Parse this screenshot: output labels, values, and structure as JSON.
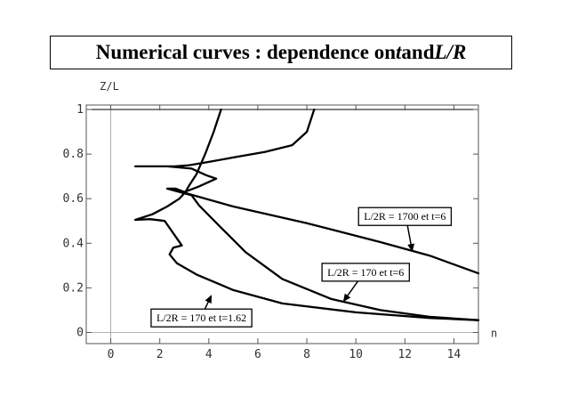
{
  "title": {
    "prefix": "Numerical curves : dependence on ",
    "var1": "t",
    "mid": " and ",
    "var2": "L/R"
  },
  "chart_data": {
    "type": "line",
    "xlabel": "n",
    "ylabel": "Z/L",
    "xlim": [
      -1.0,
      15.0
    ],
    "ylim": [
      -0.05,
      1.02
    ],
    "xticks": [
      0,
      2,
      4,
      6,
      8,
      10,
      12,
      14
    ],
    "yticks": [
      0,
      0.2,
      0.4,
      0.6,
      0.8,
      1
    ],
    "ytick_labels": [
      "0",
      "0.2",
      "0.4",
      "0.6",
      "0.8",
      "1"
    ],
    "reference_line_y": 1,
    "series": [
      {
        "points": [
          [
            4.5,
            1.0
          ],
          [
            4.2,
            0.9
          ],
          [
            3.85,
            0.8
          ],
          [
            3.5,
            0.71
          ],
          [
            3.2,
            0.66
          ],
          [
            3.05,
            0.63
          ],
          [
            2.8,
            0.6
          ],
          [
            2.3,
            0.565
          ],
          [
            1.7,
            0.53
          ],
          [
            1.0,
            0.505
          ],
          [
            1.6,
            0.508
          ],
          [
            2.2,
            0.5
          ],
          [
            2.9,
            0.39
          ],
          [
            2.55,
            0.38
          ],
          [
            2.4,
            0.35
          ],
          [
            2.7,
            0.31
          ],
          [
            3.5,
            0.26
          ],
          [
            5.0,
            0.19
          ],
          [
            7.0,
            0.13
          ],
          [
            10.0,
            0.09
          ],
          [
            13.0,
            0.065
          ],
          [
            15.0,
            0.055
          ]
        ]
      },
      {
        "points": [
          [
            8.3,
            1.0
          ],
          [
            8.0,
            0.9
          ],
          [
            7.4,
            0.84
          ],
          [
            6.3,
            0.81
          ],
          [
            5.0,
            0.785
          ],
          [
            4.0,
            0.765
          ],
          [
            3.2,
            0.75
          ],
          [
            2.6,
            0.745
          ],
          [
            1.0,
            0.745
          ],
          [
            2.3,
            0.745
          ],
          [
            3.3,
            0.735
          ],
          [
            3.9,
            0.705
          ],
          [
            4.3,
            0.69
          ],
          [
            3.6,
            0.655
          ],
          [
            3.25,
            0.64
          ],
          [
            3.0,
            0.63
          ],
          [
            2.65,
            0.645
          ],
          [
            2.3,
            0.645
          ],
          [
            3.3,
            0.615
          ],
          [
            3.6,
            0.57
          ],
          [
            4.5,
            0.47
          ],
          [
            5.5,
            0.36
          ],
          [
            7.0,
            0.24
          ],
          [
            9.0,
            0.15
          ],
          [
            11.0,
            0.1
          ],
          [
            13.0,
            0.07
          ],
          [
            15.0,
            0.055
          ]
        ]
      },
      {
        "points": [
          [
            3.05,
            0.625
          ],
          [
            5.0,
            0.565
          ],
          [
            8.0,
            0.49
          ],
          [
            11.0,
            0.405
          ],
          [
            13.0,
            0.345
          ],
          [
            15.0,
            0.265
          ]
        ]
      }
    ],
    "annotations": [
      {
        "label": "L/2R = 1700  et  t=6",
        "text_at": [
          12.0,
          0.52
        ],
        "arrow_to": [
          12.3,
          0.365
        ]
      },
      {
        "label": "L/2R = 170  et  t=6",
        "text_at": [
          10.4,
          0.27
        ],
        "arrow_to": [
          9.5,
          0.14
        ]
      },
      {
        "label": "L/2R = 170  et  t=1.62",
        "text_at": [
          3.7,
          0.065
        ],
        "arrow_to": [
          4.1,
          0.165
        ]
      }
    ]
  }
}
